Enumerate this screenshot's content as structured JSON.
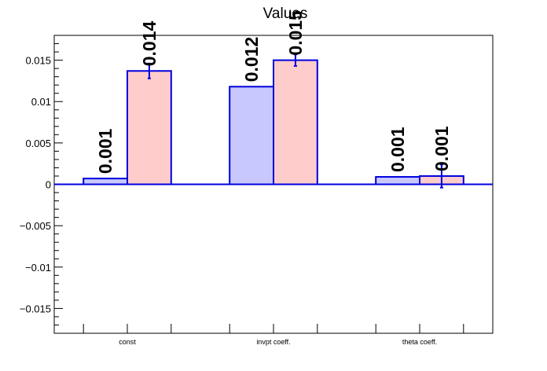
{
  "chart_data": {
    "type": "bar",
    "title": "Values",
    "categories": [
      "const",
      "invpt coeff.",
      "theta coeff."
    ],
    "series": [
      {
        "color": "#c8c8ff",
        "values": [
          0.0007,
          0.0118,
          0.0009
        ],
        "labels": [
          "0.001",
          "0.012",
          "0.001"
        ]
      },
      {
        "color": "#ffcccc",
        "values": [
          0.0137,
          0.015,
          0.001
        ],
        "errors": [
          0.0009,
          0.0007,
          0.0014
        ],
        "labels": [
          "0.014",
          "0.015",
          "0.001"
        ]
      }
    ],
    "ylim": [
      -0.018,
      0.018
    ],
    "yticks": [
      -0.015,
      -0.01,
      -0.005,
      0,
      0.005,
      0.01,
      0.015
    ],
    "ytick_labels": [
      "−0.015",
      "−0.01",
      "−0.005",
      "0",
      "0.005",
      "0.01",
      "0.015"
    ],
    "outline_color": "#0000dd",
    "grid": false
  }
}
